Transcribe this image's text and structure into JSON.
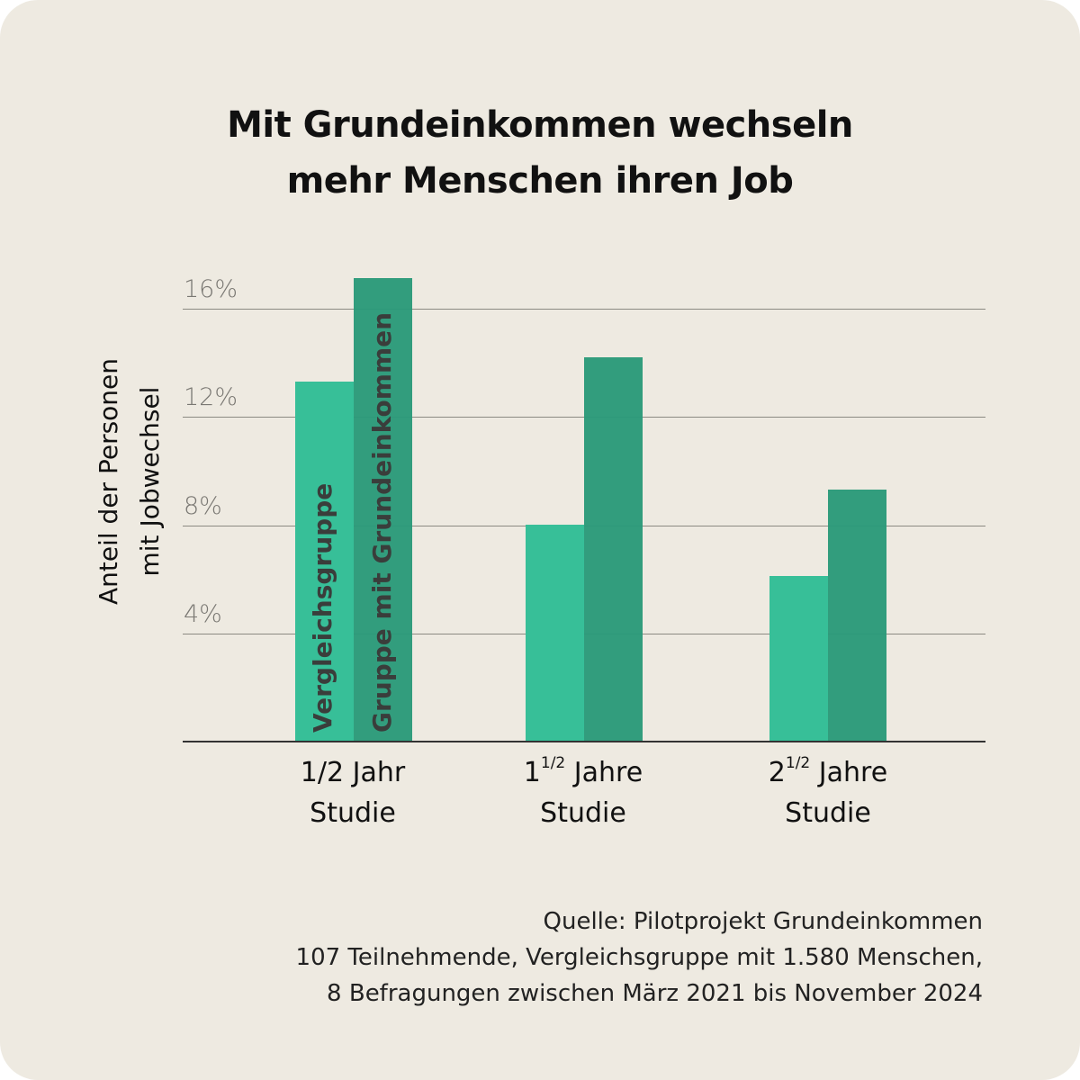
{
  "title": {
    "line1": "Mit Grundeinkommen wechseln",
    "line2": "mehr Menschen ihren Job"
  },
  "y_axis": {
    "label_line1": "Anteil der Personen",
    "label_line2": "mit Jobwechsel",
    "ticks": [
      "16%",
      "12%",
      "8%",
      "4%"
    ]
  },
  "x_axis": {
    "categories": [
      {
        "main": "1/2 Jahr",
        "sup": "",
        "prefix": "",
        "line2": "Studie"
      },
      {
        "main": "Jahre",
        "sup": "1/2",
        "prefix": "1",
        "line2": "Studie"
      },
      {
        "main": "Jahre",
        "sup": "1/2",
        "prefix": "2",
        "line2": "Studie"
      }
    ]
  },
  "series_labels": {
    "control": "Vergleichsgruppe",
    "treatment": "Gruppe mit Grundeinkommen"
  },
  "colors": {
    "control": "#37bf98",
    "treatment": "#2b9a7a",
    "background": "#eeeae1",
    "gridline": "#8c8a82",
    "tick_text": "#7a7873"
  },
  "source": {
    "line1": "Quelle: Pilotprojekt Grundeinkommen",
    "line2": "107 Teilnehmende, Vergleichsgruppe mit 1.580 Menschen,",
    "line3": "8 Befragungen zwischen März 2021 bis November 2024"
  },
  "chart_data": {
    "type": "bar",
    "title": "Mit Grundeinkommen wechseln mehr Menschen ihren Job",
    "xlabel": "",
    "ylabel": "Anteil der Personen mit Jobwechsel",
    "categories": [
      "1/2 Jahr Studie",
      "1 1/2 Jahre Studie",
      "2 1/2 Jahre Studie"
    ],
    "series": [
      {
        "name": "Vergleichsgruppe",
        "values": [
          13.3,
          8.0,
          6.1
        ]
      },
      {
        "name": "Gruppe mit Grundeinkommen",
        "values": [
          17.1,
          14.2,
          9.3
        ]
      }
    ],
    "ylim": [
      0,
      17
    ],
    "yticks": [
      4,
      8,
      12,
      16
    ],
    "ytick_labels": [
      "4%",
      "8%",
      "12%",
      "16%"
    ],
    "grid": true,
    "legend_position": "inside first bar group (rotated labels)",
    "annotations": [
      "Quelle: Pilotprojekt Grundeinkommen",
      "107 Teilnehmende, Vergleichsgruppe mit 1.580 Menschen,",
      "8 Befragungen zwischen März 2021 bis November 2024"
    ]
  }
}
